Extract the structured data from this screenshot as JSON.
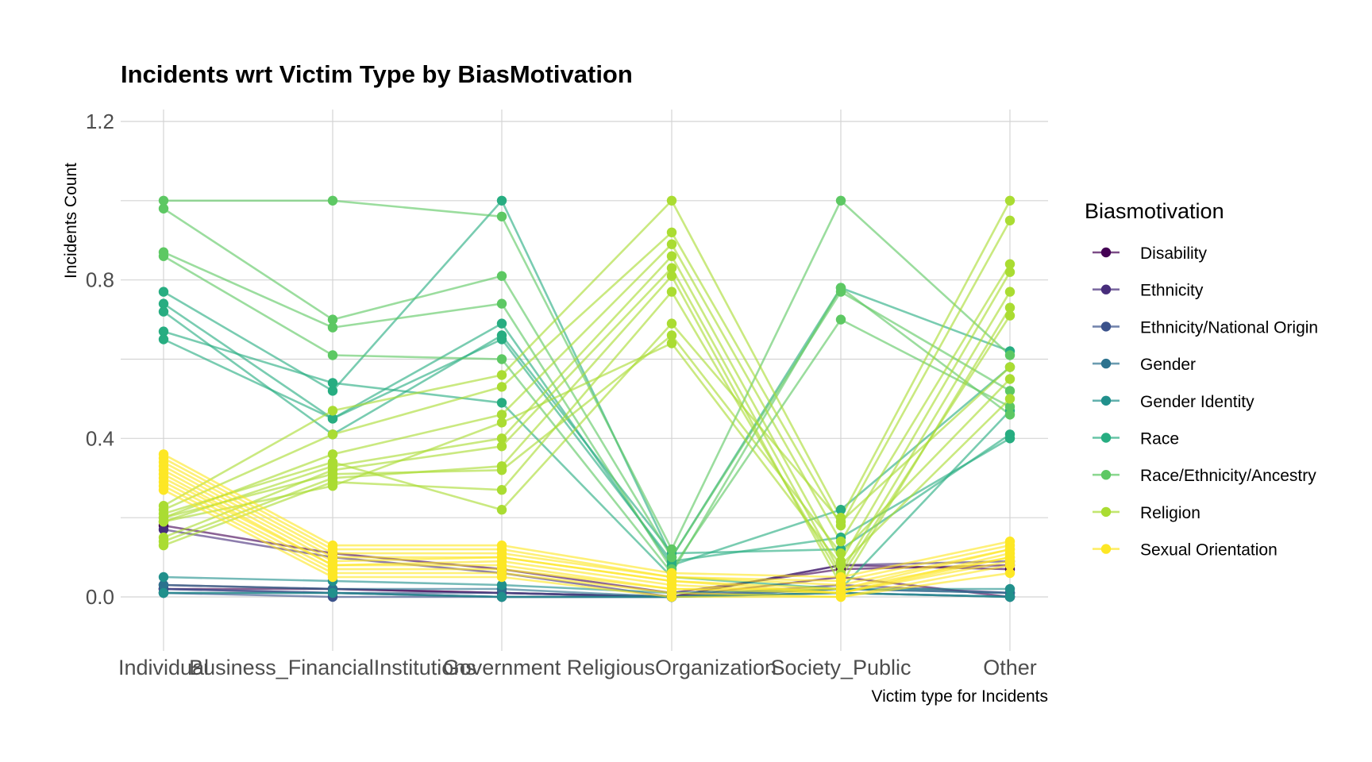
{
  "chart_data": {
    "type": "line",
    "title": "Incidents wrt Victim Type by BiasMotivation",
    "xlabel": "Victim type for Incidents",
    "ylabel": "Incidents Count",
    "categories": [
      "Individual",
      "Business_FinancialInstitutions",
      "Government",
      "ReligiousOrganization",
      "Society_Public",
      "Other"
    ],
    "yticks": [
      "0.0",
      "0.4",
      "0.8",
      "1.2"
    ],
    "ylim": [
      -0.13,
      1.23
    ],
    "legend_title": "Biasmotivation",
    "legend_position": "right",
    "grid": true,
    "series": [
      {
        "name": "Disability",
        "color": "#440154",
        "lines": [
          [
            0.03,
            0.02,
            0.01,
            0.0,
            0.08,
            0.07
          ],
          [
            0.02,
            0.02,
            0.01,
            0.0,
            0.05,
            0.0
          ],
          [
            0.18,
            0.11,
            0.07,
            0.01,
            0.07,
            0.08
          ]
        ]
      },
      {
        "name": "Ethnicity",
        "color": "#472D7B",
        "lines": [
          [
            0.17,
            0.1,
            0.06,
            0.0,
            0.08,
            0.09
          ],
          [
            0.02,
            0.01,
            0.0,
            0.0,
            0.03,
            0.01
          ]
        ]
      },
      {
        "name": "Ethnicity/National Origin",
        "color": "#3B528B",
        "lines": [
          [
            0.02,
            0.01,
            0.01,
            0.0,
            0.02,
            0.01
          ],
          [
            0.01,
            0.0,
            0.0,
            0.0,
            0.01,
            0.0
          ]
        ]
      },
      {
        "name": "Gender",
        "color": "#2C728E",
        "lines": [
          [
            0.01,
            0.01,
            0.0,
            0.0,
            0.01,
            0.0
          ],
          [
            0.03,
            0.02,
            0.02,
            0.0,
            0.02,
            0.01
          ]
        ]
      },
      {
        "name": "Gender Identity",
        "color": "#21908C",
        "lines": [
          [
            0.05,
            0.04,
            0.03,
            0.01,
            0.02,
            0.02
          ],
          [
            0.01,
            0.01,
            0.0,
            0.0,
            0.01,
            0.0
          ]
        ]
      },
      {
        "name": "Race",
        "color": "#27AD81",
        "lines": [
          [
            0.77,
            0.52,
            1.0,
            0.1,
            0.78,
            0.62
          ],
          [
            0.74,
            0.45,
            0.69,
            0.08,
            0.22,
            0.58
          ],
          [
            0.72,
            0.41,
            0.66,
            0.11,
            0.12,
            0.41
          ],
          [
            0.67,
            0.54,
            0.49,
            0.05,
            0.02,
            0.47
          ],
          [
            0.65,
            0.45,
            0.65,
            0.09,
            0.15,
            0.4
          ]
        ]
      },
      {
        "name": "Race/Ethnicity/Ancestry",
        "color": "#5DC863",
        "lines": [
          [
            1.0,
            1.0,
            0.96,
            0.12,
            1.0,
            0.61
          ],
          [
            0.98,
            0.7,
            0.81,
            0.1,
            0.77,
            0.52
          ],
          [
            0.87,
            0.68,
            0.74,
            0.07,
            0.7,
            0.48
          ],
          [
            0.86,
            0.61,
            0.6,
            0.06,
            0.78,
            0.46
          ]
        ]
      },
      {
        "name": "Religion",
        "color": "#AADC32",
        "lines": [
          [
            0.23,
            0.47,
            0.56,
            1.0,
            0.2,
            1.0
          ],
          [
            0.22,
            0.41,
            0.53,
            0.92,
            0.18,
            0.95
          ],
          [
            0.2,
            0.36,
            0.46,
            0.89,
            0.14,
            0.84
          ],
          [
            0.19,
            0.33,
            0.4,
            0.86,
            0.09,
            0.82
          ],
          [
            0.15,
            0.32,
            0.38,
            0.83,
            0.06,
            0.77
          ],
          [
            0.14,
            0.3,
            0.33,
            0.81,
            0.03,
            0.73
          ],
          [
            0.13,
            0.29,
            0.27,
            0.77,
            0.05,
            0.71
          ],
          [
            0.21,
            0.34,
            0.22,
            0.69,
            0.19,
            0.58
          ],
          [
            0.2,
            0.31,
            0.32,
            0.66,
            0.11,
            0.55
          ],
          [
            0.19,
            0.28,
            0.44,
            0.64,
            0.08,
            0.5
          ]
        ]
      },
      {
        "name": "Sexual Orientation",
        "color": "#FDE725",
        "lines": [
          [
            0.36,
            0.13,
            0.13,
            0.06,
            0.05,
            0.14
          ],
          [
            0.35,
            0.12,
            0.12,
            0.05,
            0.04,
            0.13
          ],
          [
            0.34,
            0.11,
            0.11,
            0.05,
            0.03,
            0.12
          ],
          [
            0.33,
            0.1,
            0.1,
            0.04,
            0.02,
            0.12
          ],
          [
            0.32,
            0.09,
            0.1,
            0.04,
            0.01,
            0.11
          ],
          [
            0.31,
            0.08,
            0.09,
            0.03,
            0.01,
            0.1
          ],
          [
            0.3,
            0.08,
            0.08,
            0.02,
            0.02,
            0.1
          ],
          [
            0.29,
            0.07,
            0.07,
            0.02,
            0.01,
            0.09
          ],
          [
            0.28,
            0.06,
            0.06,
            0.01,
            0.0,
            0.08
          ],
          [
            0.27,
            0.05,
            0.05,
            0.0,
            0.0,
            0.06
          ]
        ]
      }
    ]
  }
}
